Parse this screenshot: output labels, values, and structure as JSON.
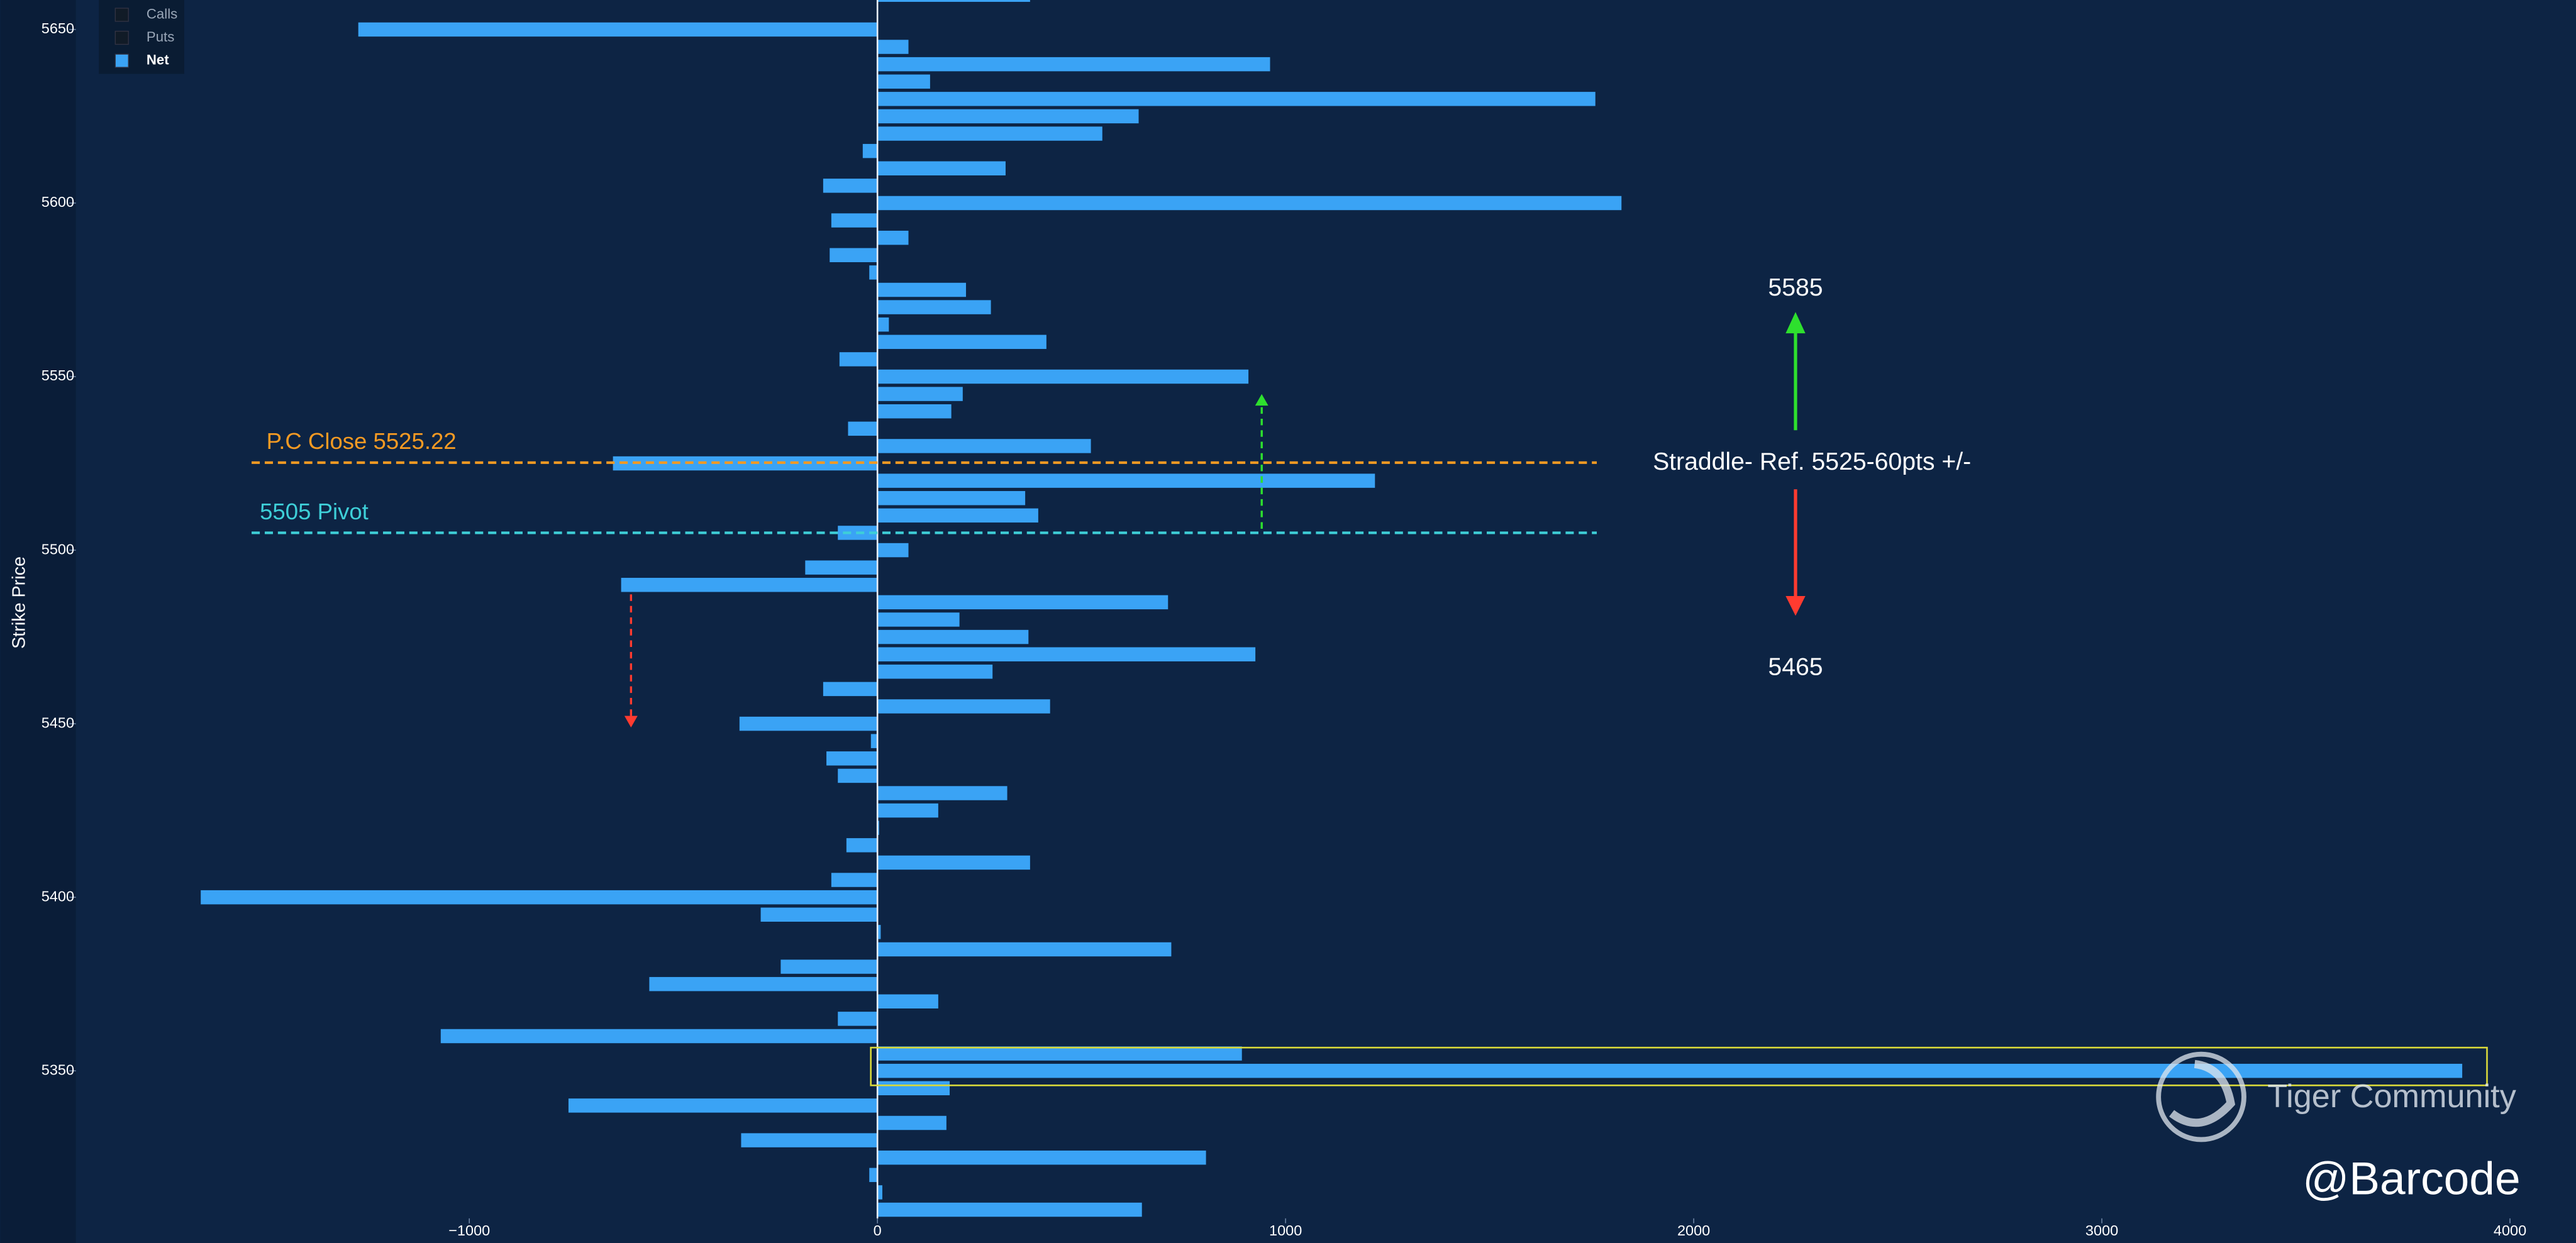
{
  "chart_data": {
    "type": "hbar",
    "y_label": "Strike Price",
    "y": [
      5660,
      5650,
      5645,
      5640,
      5635,
      5630,
      5625,
      5620,
      5615,
      5610,
      5605,
      5600,
      5595,
      5590,
      5585,
      5580,
      5575,
      5570,
      5565,
      5560,
      5555,
      5550,
      5545,
      5540,
      5535,
      5530,
      5525,
      5520,
      5515,
      5510,
      5505,
      5500,
      5495,
      5490,
      5485,
      5480,
      5475,
      5470,
      5465,
      5460,
      5455,
      5450,
      5445,
      5440,
      5435,
      5430,
      5425,
      5420,
      5415,
      5410,
      5405,
      5400,
      5395,
      5390,
      5385,
      5380,
      5375,
      5370,
      5365,
      5360,
      5355,
      5350,
      5345,
      5340,
      5335,
      5330,
      5325,
      5320,
      5315,
      5310
    ],
    "values": [
      374,
      -1272,
      76,
      962,
      129,
      1759,
      640,
      551,
      -36,
      314,
      -133,
      1823,
      -113,
      76,
      -117,
      -20,
      217,
      278,
      28,
      414,
      -93,
      909,
      209,
      181,
      -72,
      523,
      -648,
      1219,
      362,
      394,
      -97,
      76,
      -177,
      -628,
      712,
      201,
      370,
      926,
      282,
      -133,
      423,
      -338,
      -16,
      -125,
      -97,
      318,
      149,
      4,
      -76,
      374,
      -113,
      -1658,
      -286,
      8,
      720,
      -237,
      -559,
      149,
      -97,
      -1070,
      893,
      3883,
      177,
      -757,
      169,
      -334,
      805,
      -20,
      12,
      648
    ],
    "color": "#3aa3f5",
    "xlim": [
      -1964,
      4161
    ],
    "xticks": [
      {
        "value": -1000,
        "label": "−1000"
      },
      0,
      1000,
      2000,
      3000,
      4000
    ],
    "ylim": [
      5307.5,
      5658.5
    ],
    "yticks": [
      5350,
      5400,
      5450,
      5500,
      5550,
      5600,
      5650
    ],
    "legend": [
      {
        "name": "Calls",
        "color": "#111b27"
      },
      {
        "name": "Puts",
        "color": "#111b27"
      },
      {
        "name": "Net",
        "color": "#3aa3f5"
      }
    ],
    "hlines": [
      {
        "text": "P.C Close 5525.22",
        "value": 5525.22,
        "color": "#f59a23"
      },
      {
        "text": "5505 Pivot",
        "value": 5505,
        "color": "#3ecfd8"
      }
    ],
    "annotations": [
      "Straddle- Ref. 5525-60pts +/-",
      "5585",
      "5465"
    ],
    "watermark": "Tiger Community",
    "signature": "@Barcode"
  }
}
